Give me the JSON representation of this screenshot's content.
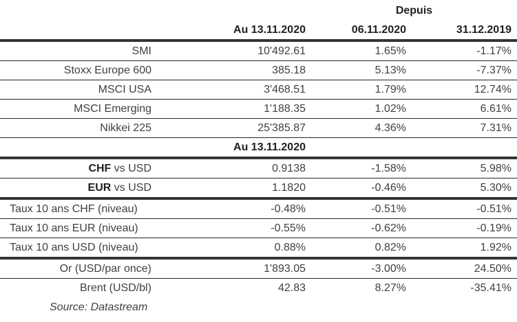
{
  "header": {
    "depuis_label": "Depuis",
    "col_main": "Au 13.11.2020",
    "col_week": "06.11.2020",
    "col_ytd": "31.12.2019"
  },
  "section_fx_header": "Au 13.11.2020",
  "rows": {
    "smi": {
      "label": "SMI",
      "v_main": "10'492.61",
      "v_week": "1.65%",
      "v_ytd": "-1.17%"
    },
    "stoxx": {
      "label": "Stoxx Europe 600",
      "v_main": "385.18",
      "v_week": "5.13%",
      "v_ytd": "-7.37%"
    },
    "msci_usa": {
      "label": "MSCI USA",
      "v_main": "3'468.51",
      "v_week": "1.79%",
      "v_ytd": "12.74%"
    },
    "msci_em": {
      "label": "MSCI Emerging",
      "v_main": "1'188.35",
      "v_week": "1.02%",
      "v_ytd": "6.61%"
    },
    "nikkei": {
      "label": "Nikkei 225",
      "v_main": "25'385.87",
      "v_week": "4.36%",
      "v_ytd": "7.31%"
    },
    "chf_usd": {
      "label_bold": "CHF",
      "label_rest": " vs USD",
      "v_main": "0.9138",
      "v_week": "-1.58%",
      "v_ytd": "5.98%"
    },
    "eur_usd": {
      "label_bold": "EUR",
      "label_rest": " vs USD",
      "v_main": "1.1820",
      "v_week": "-0.46%",
      "v_ytd": "5.30%"
    },
    "taux_chf": {
      "label": "Taux 10 ans CHF (niveau)",
      "v_main": "-0.48%",
      "v_week": "-0.51%",
      "v_ytd": "-0.51%"
    },
    "taux_eur": {
      "label": "Taux 10 ans EUR (niveau)",
      "v_main": "-0.55%",
      "v_week": "-0.62%",
      "v_ytd": "-0.19%"
    },
    "taux_usd": {
      "label": "Taux 10 ans USD (niveau)",
      "v_main": "0.88%",
      "v_week": "0.82%",
      "v_ytd": "1.92%"
    },
    "or": {
      "label": "Or (USD/par once)",
      "v_main": "1'893.05",
      "v_week": "-3.00%",
      "v_ytd": "24.50%"
    },
    "brent": {
      "label": "Brent (USD/bl)",
      "v_main": "42.83",
      "v_week": "8.27%",
      "v_ytd": "-35.41%"
    }
  },
  "footer": {
    "source": "Source: Datastream"
  },
  "colors": {
    "rule_thick": "#3a3132",
    "rule_thin": "#262626",
    "text_regular": "#3f3f3f",
    "text_bold": "#1f1f1f",
    "background": "#ffffff"
  }
}
